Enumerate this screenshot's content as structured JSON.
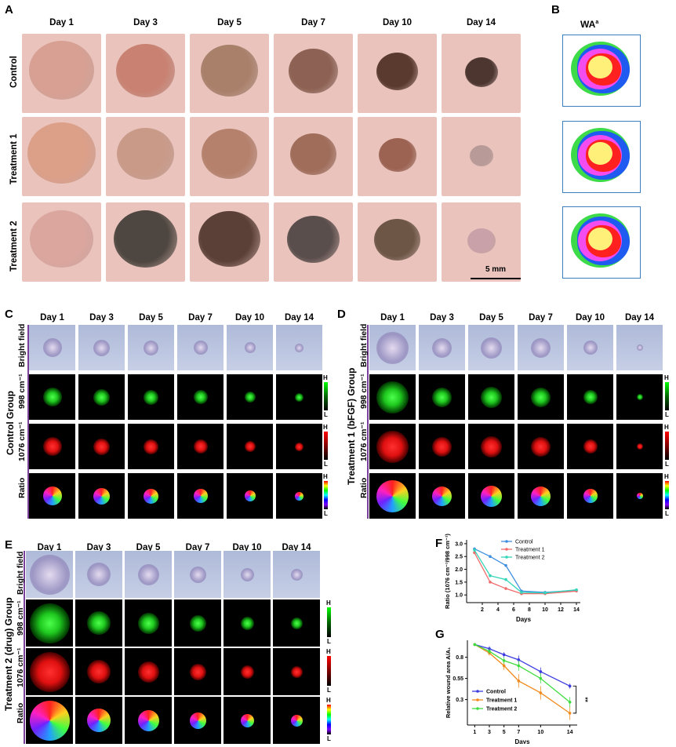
{
  "panels": {
    "A": "A",
    "B": "B",
    "C": "C",
    "D": "D",
    "E": "E",
    "F": "F",
    "G": "G"
  },
  "panelA": {
    "days": [
      "Day 1",
      "Day 3",
      "Day 5",
      "Day 7",
      "Day 10",
      "Day 14"
    ],
    "rows": [
      "Control",
      "Treatment 1",
      "Treatment 2"
    ],
    "scale_bar": "5 mm"
  },
  "panelB": {
    "title": "WA",
    "title_sup": "a"
  },
  "panelC": {
    "group": "Control Group",
    "days": [
      "Day 1",
      "Day 3",
      "Day 5",
      "Day 7",
      "Day 10",
      "Day 14"
    ],
    "rows": [
      "Bright field",
      "998 cm⁻¹",
      "1076 cm⁻¹",
      "Ratio"
    ]
  },
  "panelD": {
    "group": "Treatment 1 (bFGF) Group",
    "days": [
      "Day 1",
      "Day 3",
      "Day 5",
      "Day 7",
      "Day 10",
      "Day 14"
    ],
    "rows": [
      "Bright field",
      "998 cm⁻¹",
      "1076 cm⁻¹",
      "Ratio"
    ]
  },
  "panelE": {
    "group": "Treatment 2 (drug) Group",
    "days": [
      "Day 1",
      "Day 3",
      "Day 5",
      "Day 7",
      "Day 10",
      "Day 14"
    ],
    "rows": [
      "Bright field",
      "998 cm⁻¹",
      "1076 cm⁻¹",
      "Ratio"
    ]
  },
  "colorbar": {
    "high": "H",
    "low": "L"
  },
  "colors": {
    "control": "#3f8fe0",
    "treatment1": "#f06c6c",
    "treatment2": "#33d6b8",
    "g_control": "#3b3be0",
    "g_treatment1": "#f08a1c",
    "g_treatment2": "#3fdc3f",
    "bracket": "#7a3f9a"
  },
  "chart_data": [
    {
      "id": "F",
      "type": "line",
      "xlabel": "Days",
      "ylabel": "Ratio (1076 cm⁻¹/998 cm⁻¹)",
      "x": [
        1,
        3,
        5,
        7,
        10,
        14
      ],
      "xticks": [
        2,
        4,
        6,
        8,
        10,
        12,
        14
      ],
      "yticks": [
        1.0,
        1.5,
        2.0,
        2.5,
        3.0
      ],
      "xlim": [
        0,
        14.5
      ],
      "ylim": [
        0.7,
        3.15
      ],
      "legend": "top-right",
      "series": [
        {
          "name": "Control",
          "values": [
            2.8,
            2.5,
            2.15,
            1.15,
            1.1,
            1.18
          ]
        },
        {
          "name": "Treatment 1",
          "values": [
            2.65,
            1.5,
            1.25,
            1.05,
            1.05,
            1.15
          ]
        },
        {
          "name": "Treatment 2",
          "values": [
            2.75,
            1.75,
            1.6,
            1.1,
            1.08,
            1.2
          ]
        }
      ]
    },
    {
      "id": "G",
      "type": "line",
      "xlabel": "Days",
      "ylabel": "Relative wound area A/A₁",
      "x": [
        1,
        3,
        5,
        7,
        10,
        14
      ],
      "xticks": [
        1,
        3,
        5,
        7,
        10,
        14
      ],
      "yticks": [
        0.3,
        0.55,
        0.8
      ],
      "xlim": [
        0,
        15
      ],
      "ylim": [
        0,
        1.0
      ],
      "legend": "bottom-left",
      "significance": "**",
      "series": [
        {
          "name": "Control",
          "values": [
            0.95,
            0.9,
            0.83,
            0.77,
            0.63,
            0.46
          ],
          "errors": [
            0.01,
            0.03,
            0.03,
            0.05,
            0.05,
            0.03
          ]
        },
        {
          "name": "Treatment 1",
          "values": [
            0.95,
            0.85,
            0.7,
            0.52,
            0.38,
            0.14
          ],
          "errors": [
            0.01,
            0.03,
            0.05,
            0.08,
            0.08,
            0.08
          ]
        },
        {
          "name": "Treatment 2",
          "values": [
            0.95,
            0.87,
            0.76,
            0.7,
            0.55,
            0.27
          ],
          "errors": [
            0.01,
            0.03,
            0.04,
            0.06,
            0.06,
            0.06
          ]
        }
      ]
    }
  ]
}
